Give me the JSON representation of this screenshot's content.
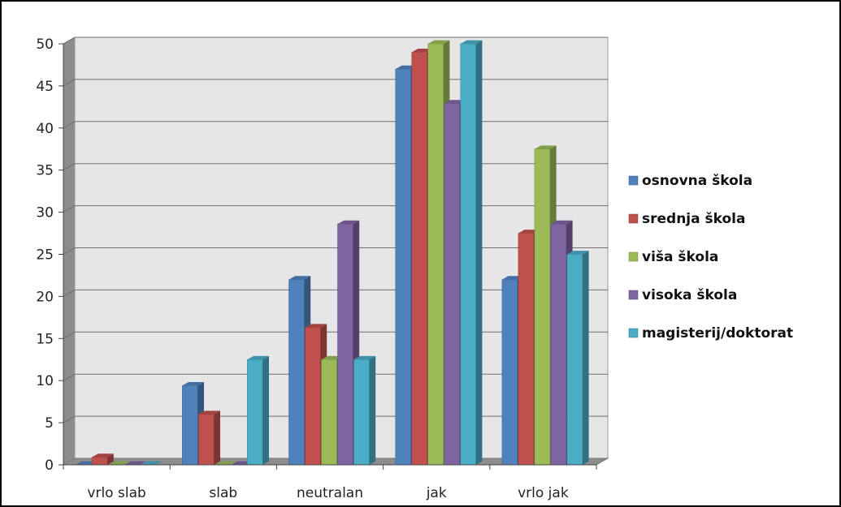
{
  "chart_data": {
    "type": "bar",
    "style": "3d-clustered-column",
    "categories": [
      "vrlo slab",
      "slab",
      "neutralan",
      "jak",
      "vrlo jak"
    ],
    "series": [
      {
        "name": "osnovna škola",
        "color": "#4f81bd",
        "values": [
          0,
          9.4,
          22,
          47,
          22
        ]
      },
      {
        "name": "srednja škola",
        "color": "#c0504d",
        "values": [
          0.9,
          6,
          16.3,
          49,
          27.5
        ]
      },
      {
        "name": "viša škola",
        "color": "#9bbb59",
        "values": [
          0,
          0,
          12.5,
          50,
          37.5
        ]
      },
      {
        "name": "visoka škola",
        "color": "#8064a2",
        "values": [
          0,
          0,
          28.6,
          42.9,
          28.6
        ]
      },
      {
        "name": "magisterij/doktorat",
        "color": "#4bacc6",
        "values": [
          0,
          12.5,
          12.5,
          50,
          25
        ]
      }
    ],
    "ylim": [
      0,
      50
    ],
    "yticks": [
      "0",
      "5",
      "10",
      "15",
      "20",
      "25",
      "30",
      "35",
      "40",
      "45",
      "50"
    ],
    "grid": true,
    "legend_position": "right",
    "title": "",
    "xlabel": "",
    "ylabel": ""
  }
}
